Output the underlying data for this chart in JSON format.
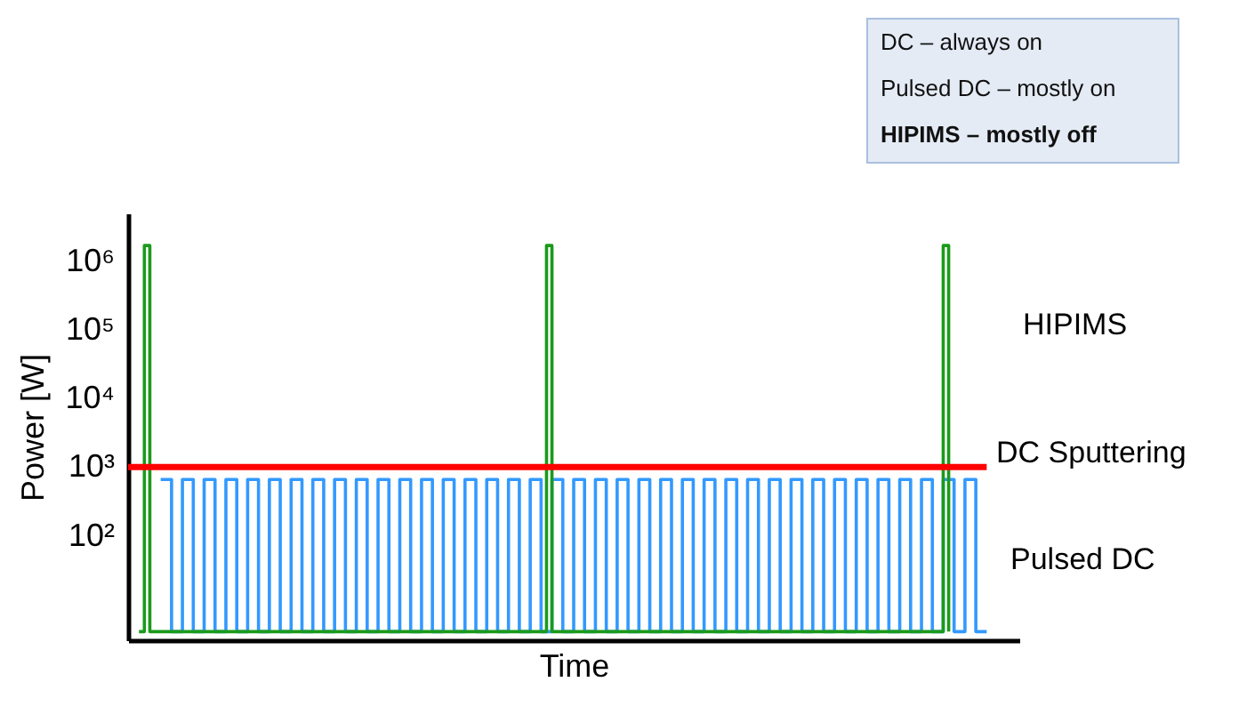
{
  "chart_data": {
    "type": "line",
    "xlabel": "Time",
    "ylabel": "Power [W]",
    "annotations": [
      "DC – always on",
      "Pulsed DC – mostly on",
      "HIPIMS – mostly off"
    ],
    "log": "y",
    "grid": false,
    "tick_labels": "y",
    "marker": "none",
    "line_style": "solid",
    "ylim": [
      3,
      5000000
    ],
    "yticks": [
      {
        "value": 100,
        "label": "10²"
      },
      {
        "value": 1000,
        "label": "10³"
      },
      {
        "value": 10000,
        "label": "10⁴"
      },
      {
        "value": 100000,
        "label": "10⁵"
      },
      {
        "value": 1000000,
        "label": "10⁶"
      }
    ],
    "categories": [
      null,
      null,
      null,
      null,
      null,
      null,
      null,
      null,
      null,
      null,
      null,
      null,
      null,
      null,
      null,
      null,
      null,
      null,
      null,
      null,
      null,
      null,
      null,
      null,
      null,
      null,
      null,
      null,
      null,
      null,
      null,
      null,
      null,
      null,
      null,
      null,
      null,
      null,
      null,
      null,
      null,
      null,
      null,
      null,
      null,
      null,
      null,
      null,
      null,
      null,
      null,
      null,
      null,
      null,
      null,
      null,
      null,
      null,
      null,
      null,
      null,
      null,
      null,
      null,
      null,
      null,
      null,
      null,
      null,
      null,
      null,
      null,
      null,
      null,
      null,
      null,
      null,
      null,
      null,
      null,
      null,
      null,
      null,
      null,
      null,
      null,
      null,
      null,
      null,
      null,
      null,
      null,
      null,
      null,
      null,
      null,
      null,
      null,
      null,
      null,
      null,
      null,
      null,
      null,
      null,
      null,
      null,
      null,
      null,
      null,
      null,
      null,
      null,
      null,
      null,
      null,
      null,
      null,
      null,
      null,
      null,
      null,
      null,
      null,
      null,
      null,
      null,
      null,
      null,
      null,
      null,
      null,
      null,
      null,
      null,
      null,
      null,
      null,
      null,
      null,
      null,
      null,
      null,
      null,
      null,
      null,
      null,
      null,
      null,
      null,
      null,
      null,
      null,
      null,
      null,
      null,
      null,
      null,
      null,
      null,
      null,
      null,
      null,
      null,
      null
    ],
    "series": [
      {
        "name": "Pulsed DC",
        "type": "step",
        "color": "#3399ff",
        "values": [
          null,
          null,
          null,
          null,
          null,
          null,
          660,
          660,
          4,
          4,
          660,
          660,
          4,
          4,
          660,
          660,
          4,
          4,
          660,
          660,
          4,
          4,
          660,
          660,
          4,
          4,
          660,
          660,
          4,
          4,
          660,
          660,
          4,
          4,
          660,
          660,
          4,
          4,
          660,
          660,
          4,
          4,
          660,
          660,
          4,
          4,
          660,
          660,
          4,
          4,
          660,
          660,
          4,
          4,
          660,
          660,
          4,
          4,
          660,
          660,
          4,
          4,
          660,
          660,
          4,
          4,
          660,
          660,
          4,
          4,
          660,
          660,
          4,
          4,
          660,
          660,
          4,
          4,
          660,
          660,
          4,
          4,
          660,
          660,
          4,
          4,
          660,
          660,
          4,
          4,
          660,
          660,
          4,
          4,
          660,
          660,
          4,
          4,
          660,
          660,
          4,
          4,
          660,
          660,
          4,
          4,
          660,
          660,
          4,
          4,
          660,
          660,
          4,
          4,
          660,
          660,
          4,
          4,
          660,
          660,
          4,
          4,
          660,
          660,
          4,
          4,
          660,
          660,
          4,
          4,
          660,
          660,
          4,
          4,
          660,
          660,
          4,
          4,
          660,
          660,
          4,
          4,
          660,
          660,
          4,
          4,
          660,
          660,
          4,
          4,
          660,
          660,
          4,
          4,
          660,
          660,
          4,
          4,
          4,
          null,
          null,
          null,
          null,
          null,
          null
        ]
      },
      {
        "name": "HIPIMS",
        "type": "step",
        "color": "#1a9a1a",
        "values": [
          null,
          null,
          4,
          1700000,
          4,
          4,
          4,
          4,
          4,
          4,
          4,
          4,
          4,
          4,
          4,
          4,
          4,
          4,
          4,
          4,
          4,
          4,
          4,
          4,
          4,
          4,
          4,
          4,
          4,
          4,
          4,
          4,
          4,
          4,
          4,
          4,
          4,
          4,
          4,
          4,
          4,
          4,
          4,
          4,
          4,
          4,
          4,
          4,
          4,
          4,
          4,
          4,
          4,
          4,
          4,
          4,
          4,
          4,
          4,
          4,
          4,
          4,
          4,
          4,
          4,
          4,
          4,
          4,
          4,
          4,
          4,
          4,
          4,
          4,
          4,
          4,
          4,
          1700000,
          4,
          4,
          4,
          4,
          4,
          4,
          4,
          4,
          4,
          4,
          4,
          4,
          4,
          4,
          4,
          4,
          4,
          4,
          4,
          4,
          4,
          4,
          4,
          4,
          4,
          4,
          4,
          4,
          4,
          4,
          4,
          4,
          4,
          4,
          4,
          4,
          4,
          4,
          4,
          4,
          4,
          4,
          4,
          4,
          4,
          4,
          4,
          4,
          4,
          4,
          4,
          4,
          4,
          4,
          4,
          4,
          4,
          4,
          4,
          4,
          4,
          4,
          4,
          4,
          4,
          4,
          4,
          4,
          4,
          4,
          4,
          4,
          1700000,
          4,
          null,
          null,
          null,
          null,
          null,
          null,
          null,
          null,
          null,
          null,
          null,
          null,
          null
        ]
      },
      {
        "name": "DC Sputtering",
        "color": "#ff0000",
        "values": [
          1000,
          1000,
          1000,
          1000,
          1000,
          1000,
          1000,
          1000,
          1000,
          1000,
          1000,
          1000,
          1000,
          1000,
          1000,
          1000,
          1000,
          1000,
          1000,
          1000,
          1000,
          1000,
          1000,
          1000,
          1000,
          1000,
          1000,
          1000,
          1000,
          1000,
          1000,
          1000,
          1000,
          1000,
          1000,
          1000,
          1000,
          1000,
          1000,
          1000,
          1000,
          1000,
          1000,
          1000,
          1000,
          1000,
          1000,
          1000,
          1000,
          1000,
          1000,
          1000,
          1000,
          1000,
          1000,
          1000,
          1000,
          1000,
          1000,
          1000,
          1000,
          1000,
          1000,
          1000,
          1000,
          1000,
          1000,
          1000,
          1000,
          1000,
          1000,
          1000,
          1000,
          1000,
          1000,
          1000,
          1000,
          1000,
          1000,
          1000,
          1000,
          1000,
          1000,
          1000,
          1000,
          1000,
          1000,
          1000,
          1000,
          1000,
          1000,
          1000,
          1000,
          1000,
          1000,
          1000,
          1000,
          1000,
          1000,
          1000,
          1000,
          1000,
          1000,
          1000,
          1000,
          1000,
          1000,
          1000,
          1000,
          1000,
          1000,
          1000,
          1000,
          1000,
          1000,
          1000,
          1000,
          1000,
          1000,
          1000,
          1000,
          1000,
          1000,
          1000,
          1000,
          1000,
          1000,
          1000,
          1000,
          1000,
          1000,
          1000,
          1000,
          1000,
          1000,
          1000,
          1000,
          1000,
          1000,
          1000,
          1000,
          1000,
          1000,
          1000,
          1000,
          1000,
          1000,
          1000,
          1000,
          1000,
          1000,
          1000,
          1000,
          1000,
          1000,
          1000,
          1000,
          1000,
          1000,
          null,
          null,
          null,
          null,
          null,
          null
        ]
      }
    ]
  }
}
